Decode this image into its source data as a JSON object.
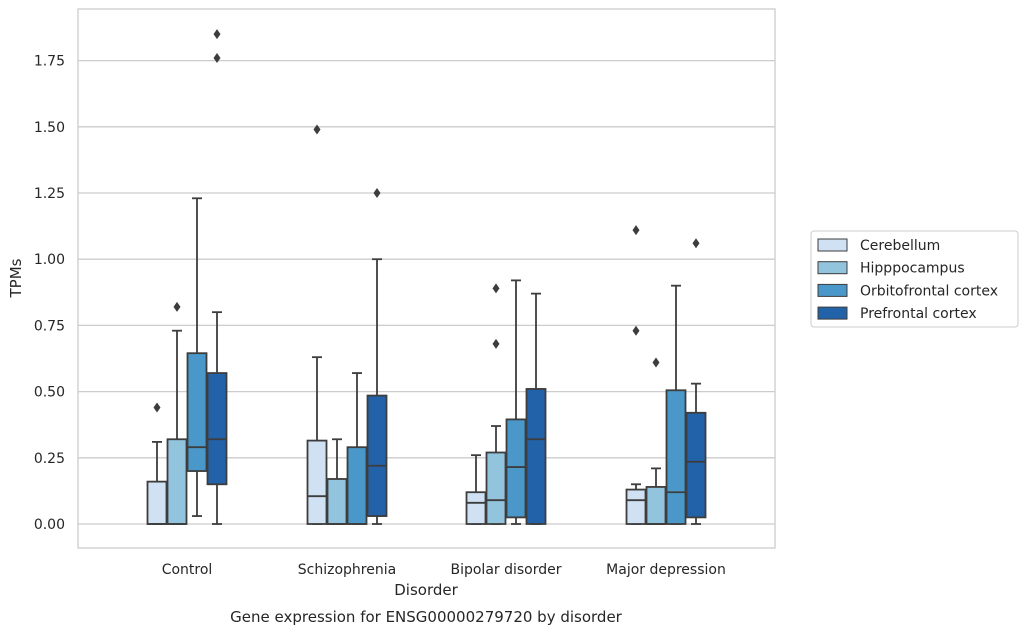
{
  "caption": "Gene expression for ENSG00000279720 by disorder",
  "chart_data": {
    "type": "box",
    "xlabel": "Disorder",
    "ylabel": "TPMs",
    "ylim": [
      -0.09,
      1.95
    ],
    "yticks": [
      "0.00",
      "0.25",
      "0.50",
      "0.75",
      "1.00",
      "1.25",
      "1.50",
      "1.75"
    ],
    "grid": "horizontal",
    "legend_position": "right",
    "categories": [
      "Control",
      "Schizophrenia",
      "Bipolar disorder",
      "Major depression"
    ],
    "series": [
      {
        "name": "Cerebellum",
        "color": "#cfe1f2",
        "boxes": [
          {
            "whisker_low": 0.0,
            "q1": 0.0,
            "median": 0.0,
            "q3": 0.16,
            "whisker_high": 0.31,
            "outliers": [
              0.44
            ]
          },
          {
            "whisker_low": 0.0,
            "q1": 0.0,
            "median": 0.105,
            "q3": 0.315,
            "whisker_high": 0.63,
            "outliers": [
              1.49
            ]
          },
          {
            "whisker_low": 0.0,
            "q1": 0.0,
            "median": 0.08,
            "q3": 0.12,
            "whisker_high": 0.26,
            "outliers": []
          },
          {
            "whisker_low": 0.0,
            "q1": 0.0,
            "median": 0.09,
            "q3": 0.13,
            "whisker_high": 0.15,
            "outliers": [
              0.73,
              1.11
            ]
          }
        ]
      },
      {
        "name": "Hipppocampus",
        "color": "#93c4de",
        "boxes": [
          {
            "whisker_low": 0.0,
            "q1": 0.0,
            "median": 0.0,
            "q3": 0.32,
            "whisker_high": 0.73,
            "outliers": [
              0.82
            ]
          },
          {
            "whisker_low": 0.0,
            "q1": 0.0,
            "median": 0.0,
            "q3": 0.17,
            "whisker_high": 0.32,
            "outliers": []
          },
          {
            "whisker_low": 0.0,
            "q1": 0.0,
            "median": 0.09,
            "q3": 0.27,
            "whisker_high": 0.37,
            "outliers": [
              0.68,
              0.89
            ]
          },
          {
            "whisker_low": 0.0,
            "q1": 0.0,
            "median": 0.0,
            "q3": 0.14,
            "whisker_high": 0.21,
            "outliers": [
              0.61
            ]
          }
        ]
      },
      {
        "name": "Orbitofrontal cortex",
        "color": "#4a98c9",
        "boxes": [
          {
            "whisker_low": 0.03,
            "q1": 0.2,
            "median": 0.29,
            "q3": 0.645,
            "whisker_high": 1.23,
            "outliers": []
          },
          {
            "whisker_low": 0.0,
            "q1": 0.0,
            "median": 0.0,
            "q3": 0.29,
            "whisker_high": 0.57,
            "outliers": []
          },
          {
            "whisker_low": 0.0,
            "q1": 0.025,
            "median": 0.215,
            "q3": 0.395,
            "whisker_high": 0.92,
            "outliers": []
          },
          {
            "whisker_low": 0.0,
            "q1": 0.0,
            "median": 0.12,
            "q3": 0.505,
            "whisker_high": 0.9,
            "outliers": []
          }
        ]
      },
      {
        "name": "Prefrontal cortex",
        "color": "#2262a8",
        "boxes": [
          {
            "whisker_low": 0.0,
            "q1": 0.15,
            "median": 0.32,
            "q3": 0.57,
            "whisker_high": 0.8,
            "outliers": [
              1.76,
              1.85
            ]
          },
          {
            "whisker_low": 0.0,
            "q1": 0.03,
            "median": 0.22,
            "q3": 0.485,
            "whisker_high": 1.0,
            "outliers": [
              1.25
            ]
          },
          {
            "whisker_low": 0.0,
            "q1": 0.0,
            "median": 0.32,
            "q3": 0.51,
            "whisker_high": 0.87,
            "outliers": []
          },
          {
            "whisker_low": 0.0,
            "q1": 0.025,
            "median": 0.235,
            "q3": 0.42,
            "whisker_high": 0.53,
            "outliers": [
              1.06
            ]
          }
        ]
      }
    ]
  }
}
